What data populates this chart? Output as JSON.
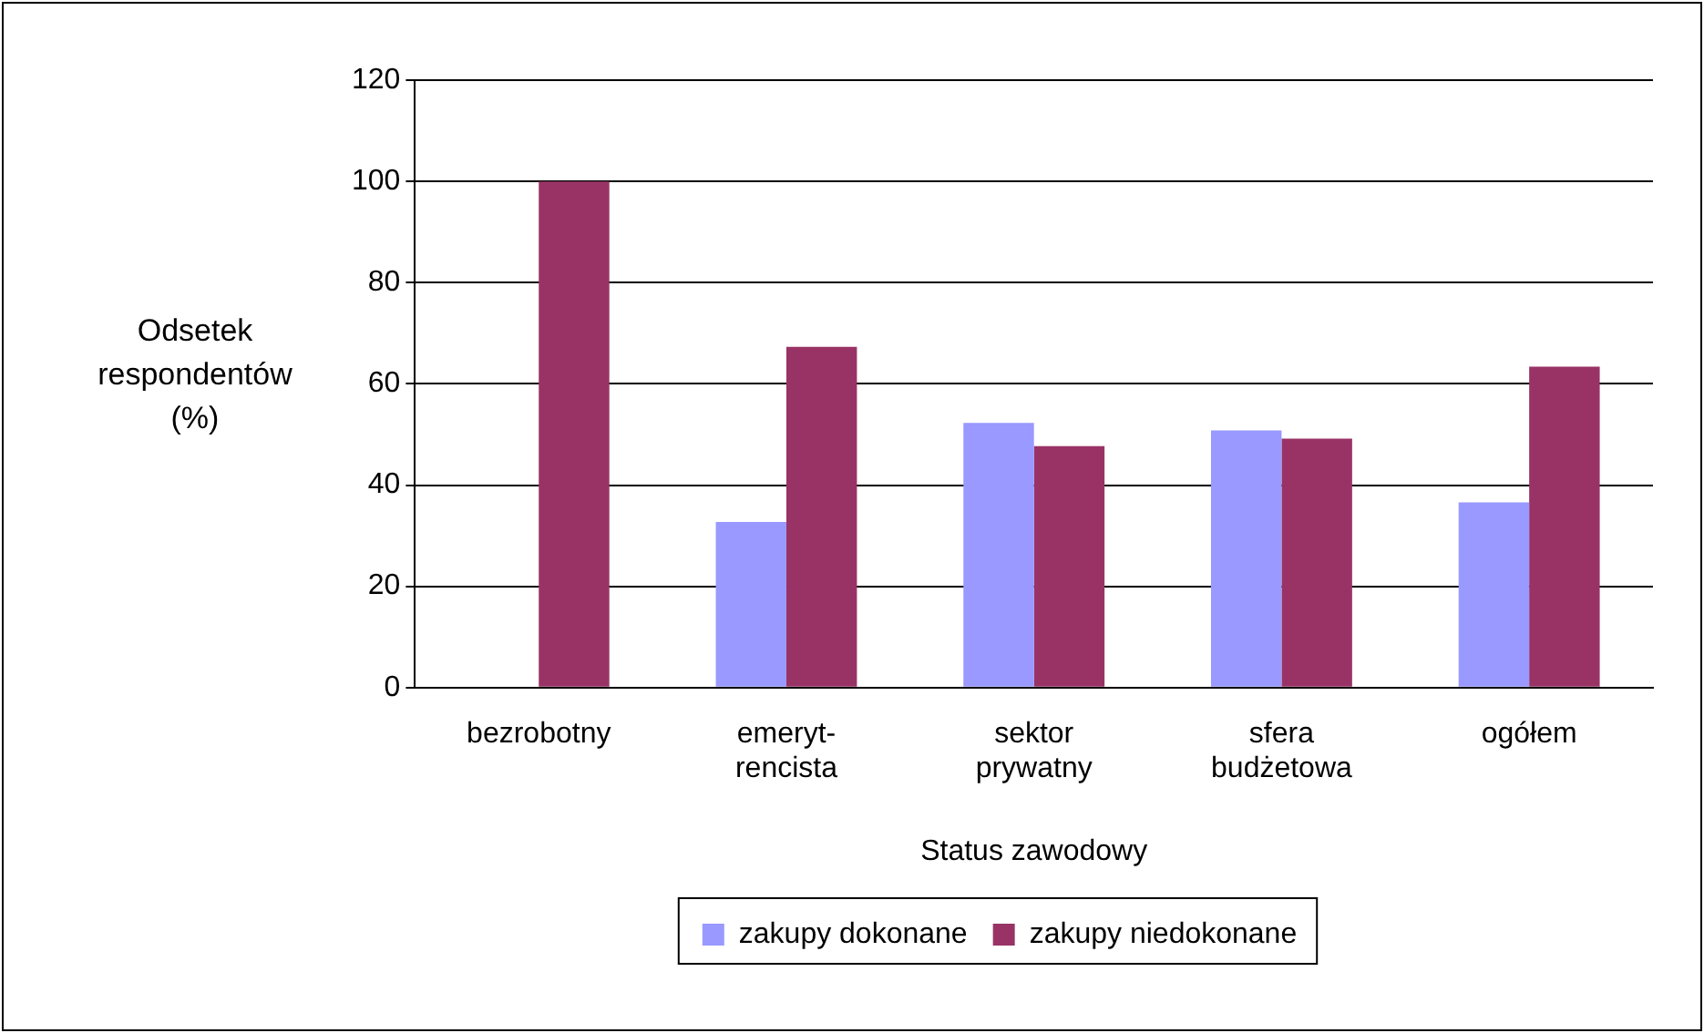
{
  "chart_data": {
    "type": "bar",
    "xlabel": "Status zawodowy",
    "ylabel": "Odsetek respondentów (%)",
    "categories": [
      "bezrobotny",
      "emeryt-\nrencista",
      "sektor\nprywatny",
      "sfera\nbudżetowa",
      "ogółem"
    ],
    "series": [
      {
        "name": "zakupy dokonane",
        "color": "#9999ff",
        "values": [
          0,
          32.7,
          52.3,
          50.8,
          36.6
        ]
      },
      {
        "name": "zakupy niedokonane",
        "color": "#993366",
        "values": [
          100,
          67.3,
          47.7,
          49.2,
          63.4
        ]
      }
    ],
    "ylim": [
      0,
      120
    ],
    "yticks": [
      0,
      20,
      40,
      60,
      80,
      100,
      120
    ],
    "grid": "y",
    "legend": "bottom"
  }
}
